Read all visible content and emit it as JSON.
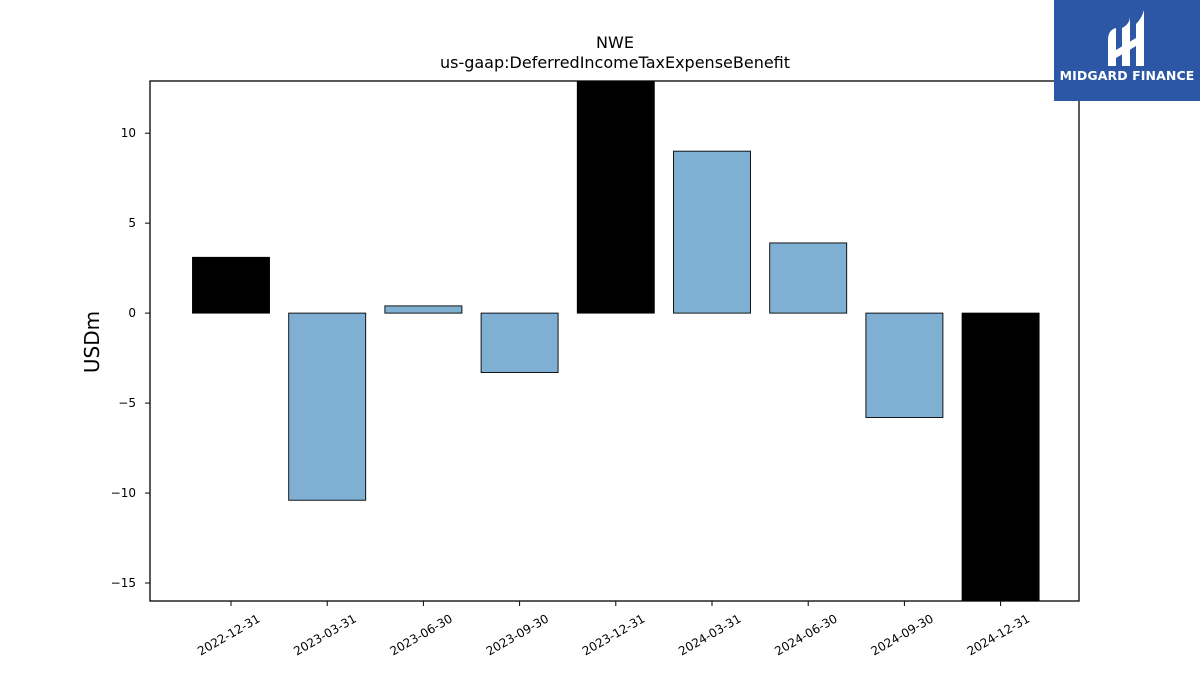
{
  "chart_data": {
    "type": "bar",
    "title": "NWE",
    "subtitle": "us-gaap:DeferredIncomeTaxExpenseBenefit",
    "ylabel": "USDm",
    "xlabel": "",
    "ylim": [
      -16,
      12.9
    ],
    "yticks": [
      -15,
      -10,
      -5,
      0,
      5,
      10
    ],
    "ytick_labels": [
      "−15",
      "−10",
      "−5",
      "0",
      "5",
      "10"
    ],
    "categories": [
      "2022-12-31",
      "2023-03-31",
      "2023-06-30",
      "2023-09-30",
      "2023-12-31",
      "2024-03-31",
      "2024-06-30",
      "2024-09-30",
      "2024-12-31"
    ],
    "values": [
      3.1,
      -10.4,
      0.4,
      -3.3,
      13.0,
      9.0,
      3.9,
      -5.8,
      -16.0
    ],
    "bar_colors": [
      "#000000",
      "#7fb0d3",
      "#7fb0d3",
      "#7fb0d3",
      "#000000",
      "#7fb0d3",
      "#7fb0d3",
      "#7fb0d3",
      "#000000"
    ],
    "grid": false,
    "legend": "none"
  },
  "logo": {
    "text": "MIDGARD FINANCE",
    "background": "#2b57a6",
    "icon": "midgard-m-logo-icon"
  }
}
